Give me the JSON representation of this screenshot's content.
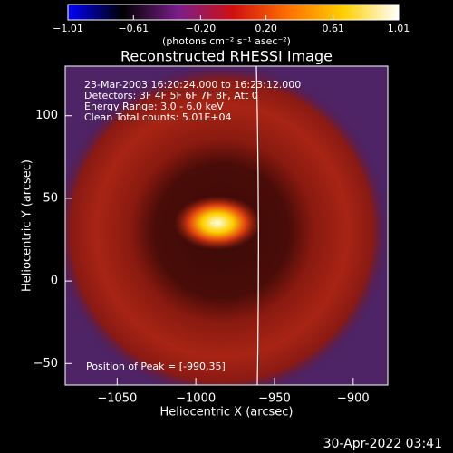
{
  "chart_data": {
    "type": "image",
    "title": "Reconstructed RHESSI Image",
    "xlabel": "Heliocentric X (arcsec)",
    "ylabel": "Heliocentric Y (arcsec)",
    "xlim": [
      -1083,
      -878
    ],
    "ylim": [
      -63,
      130
    ],
    "xticks": [
      {
        "value": -1050,
        "label": "−1050"
      },
      {
        "value": -1000,
        "label": "−1000"
      },
      {
        "value": -950,
        "label": "−950"
      },
      {
        "value": -900,
        "label": "−900"
      }
    ],
    "yticks": [
      {
        "value": -50,
        "label": "−50"
      },
      0,
      50,
      100
    ],
    "colorbar": {
      "label": "(photons cm⁻² s⁻¹ asec⁻²)",
      "lim": [
        -1.01,
        1.01
      ],
      "ticks": [
        {
          "value": -1.01,
          "label": "−1.01"
        },
        {
          "value": -0.61,
          "label": "−0.61"
        },
        {
          "value": -0.2,
          "label": "−0.20"
        },
        {
          "value": 0.2,
          "label": "0.20"
        },
        0.61,
        1.01
      ],
      "colors": [
        "#0000ff",
        "#000000",
        "#7a1e8c",
        "#d01010",
        "#ff7000",
        "#ffd000",
        "#ffffff"
      ]
    },
    "annotations": [
      "23-Mar-2003 16:20:24.000 to 16:23:12.000",
      "Detectors: 3F 4F 5F 6F 7F 8F, Att 0",
      "Energy Range: 3.0 - 6.0 keV",
      "Clean    Total counts: 5.01E+04"
    ],
    "peak_label": "Position of Peak = [-990,35]",
    "peak": [
      -990,
      35
    ],
    "timestamp": "30-Apr-2022 03:41"
  }
}
